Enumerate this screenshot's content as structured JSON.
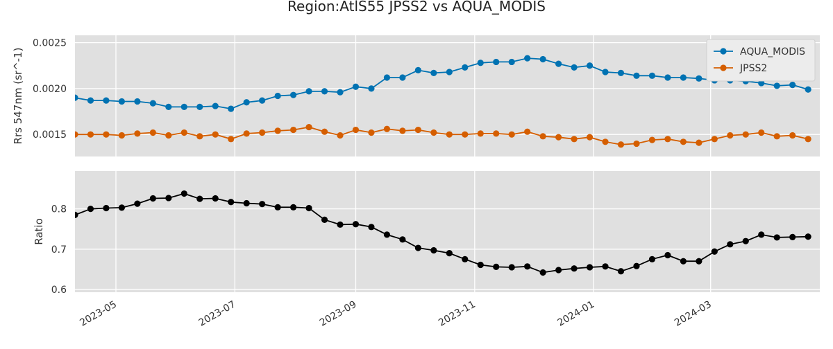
{
  "chart_data": {
    "type": "line",
    "title": "Region:AtlS55 JPSS2 vs AQUA_MODIS",
    "x_axis": {
      "type": "date",
      "range": [
        "2023-04-10",
        "2024-04-26"
      ],
      "tick_dates": [
        "2023-05-01",
        "2023-07-01",
        "2023-09-01",
        "2023-11-01",
        "2024-01-01",
        "2024-03-01"
      ],
      "tick_labels": [
        "2023-05",
        "2023-07",
        "2023-09",
        "2023-11",
        "2024-01",
        "2024-03"
      ]
    },
    "dates": [
      "2023-04-10",
      "2023-04-18",
      "2023-04-26",
      "2023-05-04",
      "2023-05-12",
      "2023-05-20",
      "2023-05-28",
      "2023-06-05",
      "2023-06-13",
      "2023-06-21",
      "2023-06-29",
      "2023-07-07",
      "2023-07-15",
      "2023-07-23",
      "2023-07-31",
      "2023-08-08",
      "2023-08-16",
      "2023-08-24",
      "2023-09-01",
      "2023-09-09",
      "2023-09-17",
      "2023-09-25",
      "2023-10-03",
      "2023-10-11",
      "2023-10-19",
      "2023-10-27",
      "2023-11-04",
      "2023-11-12",
      "2023-11-20",
      "2023-11-28",
      "2023-12-06",
      "2023-12-14",
      "2023-12-22",
      "2023-12-30",
      "2024-01-07",
      "2024-01-15",
      "2024-01-23",
      "2024-01-31",
      "2024-02-08",
      "2024-02-16",
      "2024-02-24",
      "2024-03-03",
      "2024-03-11",
      "2024-03-19",
      "2024-03-27",
      "2024-04-04",
      "2024-04-12",
      "2024-04-20"
    ],
    "panels": [
      {
        "ylabel": "Rrs 547nm (sr^-1)",
        "ylim": [
          0.00126,
          0.00258
        ],
        "yticks": [
          0.0015,
          0.002,
          0.0025
        ],
        "ytick_labels": [
          "0.0015",
          "0.0020",
          "0.0025"
        ],
        "grid": true,
        "legend_position": "top-right",
        "series": [
          {
            "name": "AQUA_MODIS",
            "color": "#0072B2",
            "values": [
              0.0019,
              0.00187,
              0.00187,
              0.00186,
              0.00186,
              0.00184,
              0.0018,
              0.0018,
              0.0018,
              0.00181,
              0.00178,
              0.00185,
              0.00187,
              0.00192,
              0.00193,
              0.00197,
              0.00197,
              0.00196,
              0.00202,
              0.002,
              0.00212,
              0.00212,
              0.0022,
              0.00217,
              0.00218,
              0.00223,
              0.00228,
              0.00229,
              0.00229,
              0.00233,
              0.00232,
              0.00227,
              0.00223,
              0.00225,
              0.00218,
              0.00217,
              0.00214,
              0.00214,
              0.00212,
              0.00212,
              0.00211,
              0.00209,
              0.00209,
              0.00208,
              0.00206,
              0.00203,
              0.00204,
              0.00199
            ]
          },
          {
            "name": "JPSS2",
            "color": "#D55E00",
            "values": [
              0.0015,
              0.0015,
              0.0015,
              0.00149,
              0.00151,
              0.00152,
              0.00149,
              0.00152,
              0.00148,
              0.0015,
              0.00145,
              0.00151,
              0.00152,
              0.00154,
              0.00155,
              0.00158,
              0.00153,
              0.00149,
              0.00155,
              0.00152,
              0.00156,
              0.00154,
              0.00155,
              0.00152,
              0.0015,
              0.0015,
              0.00151,
              0.00151,
              0.0015,
              0.00153,
              0.00148,
              0.00147,
              0.00145,
              0.00147,
              0.00142,
              0.00139,
              0.0014,
              0.00144,
              0.00145,
              0.00142,
              0.00141,
              0.00145,
              0.00149,
              0.0015,
              0.00152,
              0.00148,
              0.00149,
              0.00145
            ]
          }
        ]
      },
      {
        "ylabel": "Ratio",
        "ylim": [
          0.593,
          0.894
        ],
        "yticks": [
          0.6,
          0.7,
          0.8
        ],
        "ytick_labels": [
          "0.6",
          "0.7",
          "0.8"
        ],
        "grid": true,
        "series": [
          {
            "name": "",
            "color": "#000000",
            "values": [
              0.785,
              0.8,
              0.802,
              0.803,
              0.813,
              0.826,
              0.827,
              0.838,
              0.825,
              0.826,
              0.817,
              0.814,
              0.812,
              0.804,
              0.804,
              0.802,
              0.773,
              0.761,
              0.762,
              0.755,
              0.736,
              0.724,
              0.703,
              0.697,
              0.69,
              0.675,
              0.661,
              0.656,
              0.655,
              0.657,
              0.642,
              0.648,
              0.652,
              0.655,
              0.657,
              0.645,
              0.658,
              0.675,
              0.685,
              0.67,
              0.67,
              0.694,
              0.712,
              0.72,
              0.736,
              0.729,
              0.73,
              0.731
            ]
          }
        ]
      }
    ]
  }
}
